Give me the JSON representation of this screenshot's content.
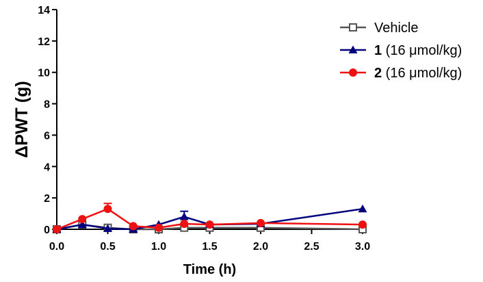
{
  "chart_data": {
    "type": "line",
    "title": "",
    "xlabel": "Time (h)",
    "ylabel": "ΔPWT (g)",
    "xlim": [
      0,
      3
    ],
    "ylim": [
      0,
      14
    ],
    "xticks": [
      0,
      0.5,
      1,
      1.5,
      2,
      2.5,
      3
    ],
    "yticks": [
      0,
      2,
      4,
      6,
      8,
      10,
      12,
      14
    ],
    "xtick_labels": [
      "0.0",
      "0.5",
      "1.0",
      "1.5",
      "2.0",
      "2.5",
      "3.0"
    ],
    "ytick_labels": [
      "0",
      "2",
      "4",
      "6",
      "8",
      "10",
      "12",
      "14"
    ],
    "grid": false,
    "legend_position": "top-right",
    "series": [
      {
        "name": "Vehicle",
        "legend_bold": "",
        "legend_rest": "Vehicle",
        "color": "#555555",
        "marker": "square-open",
        "x": [
          0,
          0.25,
          0.5,
          0.75,
          1.0,
          1.25,
          1.5,
          2.0,
          3.0
        ],
        "y": [
          0,
          0.3,
          0.1,
          0.0,
          0.0,
          0.1,
          0.1,
          0.1,
          0.0
        ],
        "err": [
          0,
          0,
          0,
          0,
          0,
          0,
          0,
          0,
          0
        ]
      },
      {
        "name": "1 (16 μmol/kg)",
        "legend_bold": "1",
        "legend_rest": " (16 μmol/kg)",
        "color": "#00007f",
        "marker": "triangle",
        "x": [
          0,
          0.25,
          0.5,
          0.75,
          1.0,
          1.25,
          1.5,
          2.0,
          3.0
        ],
        "y": [
          0,
          0.3,
          0.05,
          0.0,
          0.3,
          0.8,
          0.3,
          0.35,
          1.3
        ],
        "err": [
          0,
          0,
          0,
          0,
          0,
          0.35,
          0,
          0,
          0
        ]
      },
      {
        "name": "2 (16 μmol/kg)",
        "legend_bold": "2",
        "legend_rest": " (16 μmol/kg)",
        "color": "#ee1111",
        "marker": "circle",
        "x": [
          0,
          0.25,
          0.5,
          0.75,
          1.0,
          1.25,
          1.5,
          2.0,
          3.0
        ],
        "y": [
          0,
          0.65,
          1.3,
          0.2,
          0.1,
          0.35,
          0.3,
          0.4,
          0.3
        ],
        "err": [
          0,
          0,
          0.35,
          0,
          0,
          0,
          0,
          0,
          0
        ]
      }
    ]
  }
}
